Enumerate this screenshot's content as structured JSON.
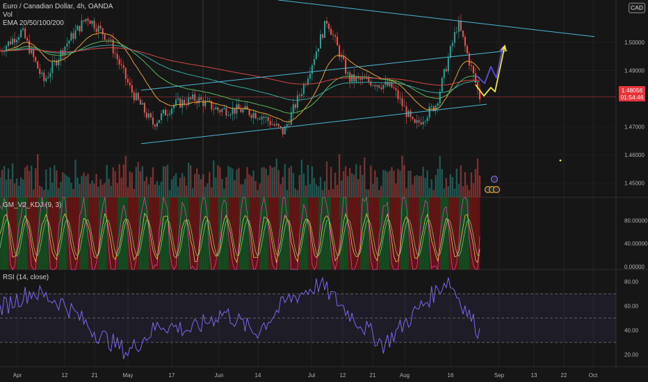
{
  "header": {
    "symbol_line": "Euro / Canadian Dollar, 4h, OANDA",
    "vol_label": "Vol",
    "ema_label": "EMA 20/50/100/200",
    "currency_badge": "CAD"
  },
  "price_tag": {
    "price": "1.48056",
    "countdown": "01:54:46"
  },
  "panes": {
    "kdj_title": "GM_V2_KDJ (9, 3)",
    "rsi_title": "RSI (14, close)"
  },
  "colors": {
    "background": "#161616",
    "channel": "#4fb8d8",
    "ema20": "#e8a233",
    "ema50": "#5cb85c",
    "ema100": "#3aa9a0",
    "ema200": "#d64545",
    "rsi": "#7b68ee",
    "arrow_blue": "#5a4fd6",
    "arrow_yellow": "#f5e642",
    "price_tag": "#e8333a"
  },
  "chart_data": [
    {
      "type": "candlestick",
      "symbol": "EURCAD",
      "timeframe": "4h",
      "ylim": [
        1.445,
        1.515
      ],
      "y_ticks": [
        "1.50000",
        "1.49000",
        "1.48056",
        "1.47000",
        "1.46000",
        "1.45000"
      ],
      "x_ticks": [
        "Apr",
        "12",
        "21",
        "May",
        "17",
        "Jun",
        "14",
        "Jul",
        "12",
        "21",
        "Aug",
        "16",
        "Sep",
        "13",
        "22",
        "Oct"
      ],
      "approx_close_path": [
        {
          "t": "Apr start",
          "y": 1.497
        },
        {
          "t": "early Apr",
          "y": 1.504
        },
        {
          "t": "mid Apr",
          "y": 1.486
        },
        {
          "t": "Apr 12",
          "y": 1.499
        },
        {
          "t": "Apr 21",
          "y": 1.509
        },
        {
          "t": "late Apr",
          "y": 1.501
        },
        {
          "t": "May",
          "y": 1.483
        },
        {
          "t": "mid May",
          "y": 1.471
        },
        {
          "t": "May 17",
          "y": 1.478
        },
        {
          "t": "late May",
          "y": 1.48
        },
        {
          "t": "Jun",
          "y": 1.476
        },
        {
          "t": "Jun 14",
          "y": 1.476
        },
        {
          "t": "late Jun",
          "y": 1.474
        },
        {
          "t": "Jul",
          "y": 1.468
        },
        {
          "t": "Jul 12",
          "y": 1.486
        },
        {
          "t": "Jul 21",
          "y": 1.508
        },
        {
          "t": "late Jul",
          "y": 1.487
        },
        {
          "t": "Aug",
          "y": 1.486
        },
        {
          "t": "early Aug",
          "y": 1.484
        },
        {
          "t": "mid Aug",
          "y": 1.47
        },
        {
          "t": "Aug 16",
          "y": 1.478
        },
        {
          "t": "late Aug",
          "y": 1.507
        },
        {
          "t": "last",
          "y": 1.4806
        }
      ],
      "annotations": {
        "upper_channel_line": [
          {
            "t": "late Apr",
            "y": 1.483
          },
          {
            "t": "end Aug",
            "y": 1.497
          }
        ],
        "lower_channel_line": [
          {
            "t": "late Apr",
            "y": 1.464
          },
          {
            "t": "end Aug",
            "y": 1.478
          }
        ],
        "descending_trendline": [
          {
            "t": "Jun",
            "y": 1.515
          },
          {
            "t": "mid Sep",
            "y": 1.502
          }
        ],
        "current_price_line": 1.48056,
        "projection_arrows": [
          "blue",
          "yellow"
        ]
      }
    },
    {
      "type": "bar",
      "name": "Vol",
      "description_free": true
    },
    {
      "type": "line",
      "name": "GM_V2_KDJ (9, 3)",
      "ylim": [
        -5,
        120
      ],
      "y_ticks": [
        "80.00000",
        "40.00000",
        "0.00000"
      ]
    },
    {
      "type": "line",
      "name": "RSI (14, close)",
      "ylim": [
        10,
        90
      ],
      "y_ticks": [
        "80.00",
        "60.00",
        "40.00",
        "20.00"
      ],
      "bands": [
        70,
        50,
        30
      ],
      "approx_values": [
        {
          "t": "Apr",
          "y": 58
        },
        {
          "t": "mid Apr",
          "y": 72
        },
        {
          "t": "Apr 21",
          "y": 62
        },
        {
          "t": "May",
          "y": 38
        },
        {
          "t": "mid May",
          "y": 22
        },
        {
          "t": "May 17",
          "y": 45
        },
        {
          "t": "Jun",
          "y": 40
        },
        {
          "t": "Jun 14",
          "y": 55
        },
        {
          "t": "Jul",
          "y": 38
        },
        {
          "t": "Jul 12",
          "y": 65
        },
        {
          "t": "Jul 21",
          "y": 78
        },
        {
          "t": "Aug",
          "y": 52
        },
        {
          "t": "mid Aug",
          "y": 28
        },
        {
          "t": "Aug 16",
          "y": 55
        },
        {
          "t": "late Aug",
          "y": 82
        },
        {
          "t": "last",
          "y": 38
        }
      ]
    }
  ]
}
